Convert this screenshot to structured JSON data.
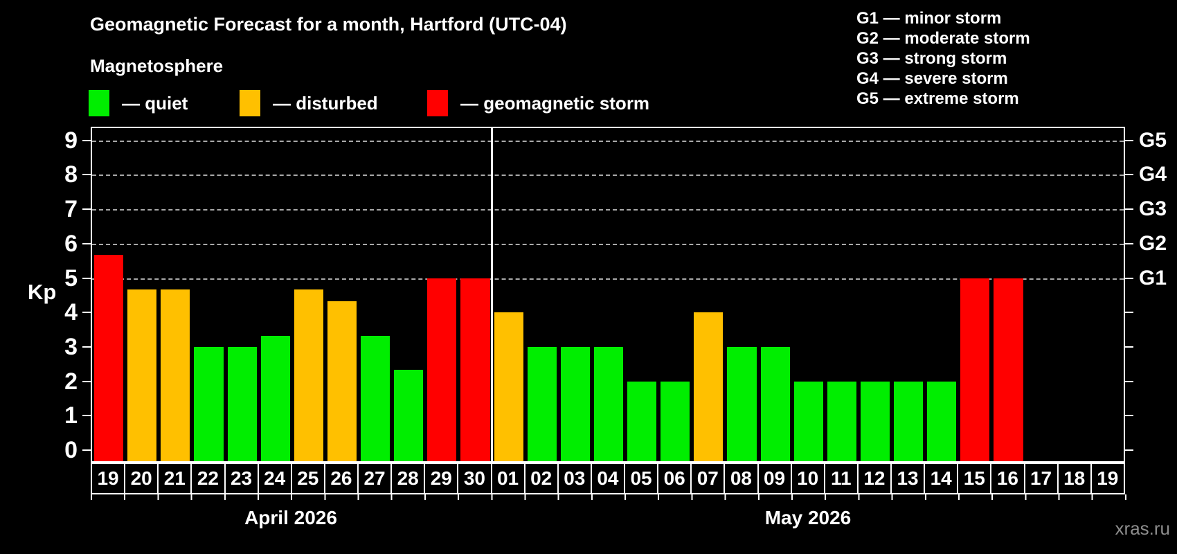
{
  "title": "Geomagnetic Forecast for a month, Hartford (UTC-04)",
  "legend": {
    "heading": "Magnetosphere",
    "items": [
      {
        "name": "quiet",
        "label": "— quiet",
        "color": "#00ee00"
      },
      {
        "name": "disturbed",
        "label": "— disturbed",
        "color": "#ffc000"
      },
      {
        "name": "storm",
        "label": "— geomagnetic storm",
        "color": "#ff0000"
      }
    ]
  },
  "storm_scale_legend": [
    "G1 — minor storm",
    "G2 — moderate storm",
    "G3 — strong storm",
    "G4 — severe storm",
    "G5 — extreme storm"
  ],
  "watermark": "xras.ru",
  "chart_data": {
    "type": "bar",
    "title": "Geomagnetic Forecast for a month, Hartford (UTC-04)",
    "ylabel": "Kp",
    "ylim": [
      0,
      9.4
    ],
    "y_ticks": [
      0,
      1,
      2,
      3,
      4,
      5,
      6,
      7,
      8,
      9
    ],
    "gridlines_at": [
      5,
      6,
      7,
      8,
      9
    ],
    "grid": "dashed horizontal at storm levels only",
    "legend_position": "top",
    "right_axis_labels": [
      {
        "kp": 5,
        "label": "G1"
      },
      {
        "kp": 6,
        "label": "G2"
      },
      {
        "kp": 7,
        "label": "G3"
      },
      {
        "kp": 8,
        "label": "G4"
      },
      {
        "kp": 9,
        "label": "G5"
      }
    ],
    "colors": {
      "quiet": "#00ee00",
      "disturbed": "#ffc000",
      "storm": "#ff0000"
    },
    "months": [
      {
        "label": "April 2026",
        "days": [
          {
            "day": "19",
            "value": 5.67,
            "status": "storm"
          },
          {
            "day": "20",
            "value": 4.67,
            "status": "disturbed"
          },
          {
            "day": "21",
            "value": 4.67,
            "status": "disturbed"
          },
          {
            "day": "22",
            "value": 3.0,
            "status": "quiet"
          },
          {
            "day": "23",
            "value": 3.0,
            "status": "quiet"
          },
          {
            "day": "24",
            "value": 3.33,
            "status": "quiet"
          },
          {
            "day": "25",
            "value": 4.67,
            "status": "disturbed"
          },
          {
            "day": "26",
            "value": 4.33,
            "status": "disturbed"
          },
          {
            "day": "27",
            "value": 3.33,
            "status": "quiet"
          },
          {
            "day": "28",
            "value": 2.33,
            "status": "quiet"
          },
          {
            "day": "29",
            "value": 5.0,
            "status": "storm"
          },
          {
            "day": "30",
            "value": 5.0,
            "status": "storm"
          }
        ]
      },
      {
        "label": "May 2026",
        "days": [
          {
            "day": "01",
            "value": 4.0,
            "status": "disturbed"
          },
          {
            "day": "02",
            "value": 3.0,
            "status": "quiet"
          },
          {
            "day": "03",
            "value": 3.0,
            "status": "quiet"
          },
          {
            "day": "04",
            "value": 3.0,
            "status": "quiet"
          },
          {
            "day": "05",
            "value": 2.0,
            "status": "quiet"
          },
          {
            "day": "06",
            "value": 2.0,
            "status": "quiet"
          },
          {
            "day": "07",
            "value": 4.0,
            "status": "disturbed"
          },
          {
            "day": "08",
            "value": 3.0,
            "status": "quiet"
          },
          {
            "day": "09",
            "value": 3.0,
            "status": "quiet"
          },
          {
            "day": "10",
            "value": 2.0,
            "status": "quiet"
          },
          {
            "day": "11",
            "value": 2.0,
            "status": "quiet"
          },
          {
            "day": "12",
            "value": 2.0,
            "status": "quiet"
          },
          {
            "day": "13",
            "value": 2.0,
            "status": "quiet"
          },
          {
            "day": "14",
            "value": 2.0,
            "status": "quiet"
          },
          {
            "day": "15",
            "value": 5.0,
            "status": "storm"
          },
          {
            "day": "16",
            "value": 5.0,
            "status": "storm"
          },
          {
            "day": "17",
            "value": null,
            "status": null
          },
          {
            "day": "18",
            "value": null,
            "status": null
          },
          {
            "day": "19",
            "value": null,
            "status": null
          }
        ]
      }
    ]
  }
}
